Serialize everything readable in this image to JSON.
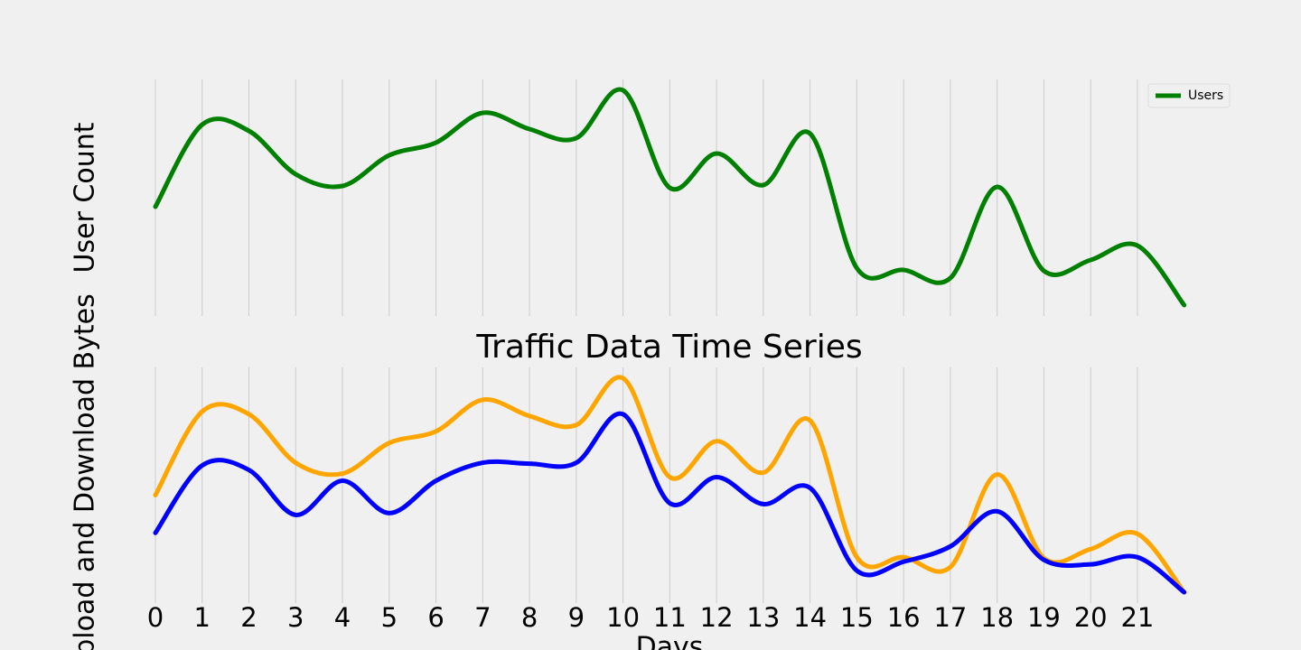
{
  "chart_data": [
    {
      "type": "line",
      "ylabel": "User Count",
      "x": [
        0,
        1,
        2,
        3,
        4,
        5,
        6,
        7,
        8,
        9,
        10,
        11,
        12,
        13,
        14,
        15,
        16,
        17,
        18,
        19,
        20,
        21,
        22
      ],
      "series": [
        {
          "name": "Users",
          "color": "#008000",
          "values": [
            121,
            212,
            205,
            157,
            144,
            178,
            192,
            225,
            207,
            197,
            250,
            142,
            180,
            145,
            202,
            53,
            51,
            42,
            143,
            50,
            62,
            78,
            12
          ]
        }
      ],
      "xlim": [
        0,
        22
      ],
      "ylim": [
        0,
        262
      ],
      "xticks": [
        0,
        1,
        2,
        3,
        4,
        5,
        6,
        7,
        8,
        9,
        10,
        11,
        12,
        13,
        14,
        15,
        16,
        17,
        18,
        19,
        20,
        21
      ],
      "grid": true,
      "legend": "upper right"
    },
    {
      "type": "line",
      "title": "Traffic Data Time Series",
      "xlabel": "Days",
      "ylabel": "Upload and Download Bytes",
      "x": [
        0,
        1,
        2,
        3,
        4,
        5,
        6,
        7,
        8,
        9,
        10,
        11,
        12,
        13,
        14,
        15,
        16,
        17,
        18,
        19,
        20,
        21,
        22
      ],
      "series": [
        {
          "color": "#ffa500",
          "values": [
            120,
            213,
            210,
            156,
            144,
            178,
            191,
            226,
            208,
            198,
            250,
            140,
            180,
            145,
            203,
            51,
            51,
            40,
            143,
            50,
            60,
            77,
            12
          ]
        },
        {
          "color": "#0000ff",
          "values": [
            78,
            153,
            148,
            98,
            136,
            100,
            136,
            156,
            155,
            156,
            210,
            111,
            140,
            110,
            128,
            36,
            46,
            63,
            102,
            48,
            43,
            51,
            12
          ]
        }
      ],
      "xlim": [
        0,
        22
      ],
      "ylim": [
        0,
        262
      ],
      "xticks": [
        0,
        1,
        2,
        3,
        4,
        5,
        6,
        7,
        8,
        9,
        10,
        11,
        12,
        13,
        14,
        15,
        16,
        17,
        18,
        19,
        20,
        21
      ],
      "grid": true
    }
  ]
}
